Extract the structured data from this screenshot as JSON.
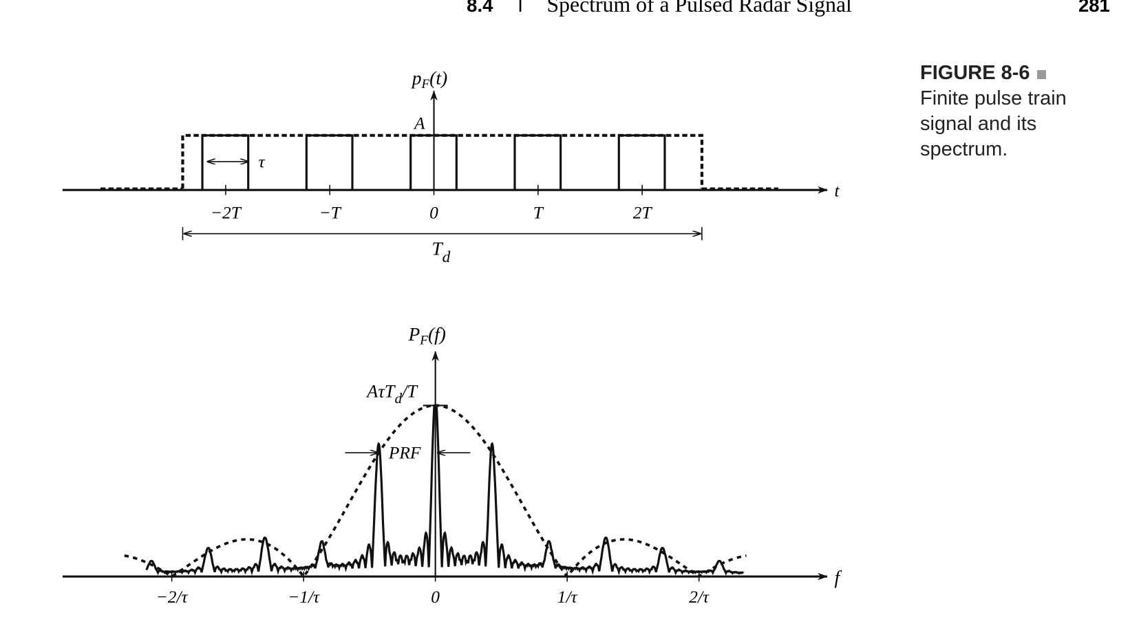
{
  "header": {
    "section": "8.4",
    "separator": "I",
    "title": "Spectrum of a Pulsed Radar Signal",
    "page": "281"
  },
  "caption": {
    "label": "FIGURE 8-6",
    "text": "Finite pulse train signal and its spectrum."
  },
  "top_plot": {
    "y_label": {
      "main": "p",
      "sub": "F",
      "tail": "(t)"
    },
    "amplitude": "A",
    "pulse_width": "τ",
    "axis": "t",
    "ticks": [
      "−2T",
      "−T",
      "0",
      "T",
      "2T"
    ],
    "duration": {
      "main": "T",
      "sub": "d"
    }
  },
  "bottom_plot": {
    "y_label": {
      "main": "P",
      "sub": "F",
      "tail": "(f)"
    },
    "peak": {
      "main": "AτT",
      "sub": "d",
      "tail": "/T"
    },
    "prf": "PRF",
    "axis": "f",
    "ticks": [
      "−2/τ",
      "−1/τ",
      "0",
      "1/τ",
      "2/τ"
    ]
  }
}
